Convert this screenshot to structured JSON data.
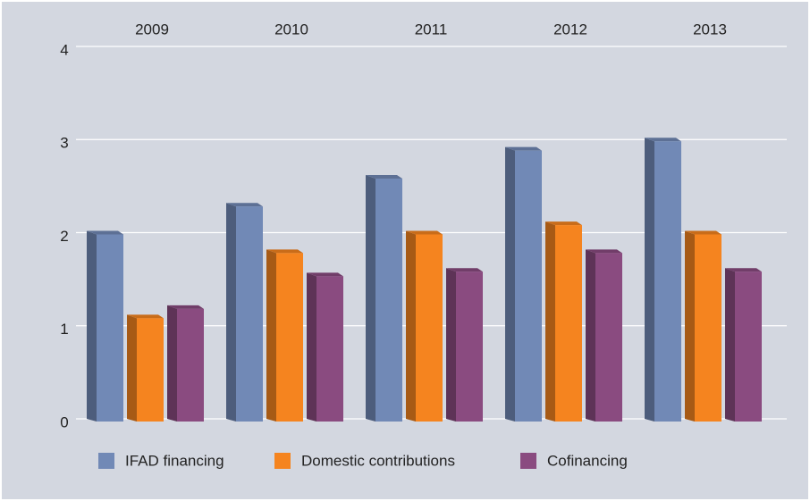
{
  "chart_data": {
    "type": "bar",
    "categories": [
      "2009",
      "2010",
      "2011",
      "2012",
      "2013"
    ],
    "series": [
      {
        "name": "IFAD financing",
        "color": "#7189b6",
        "values": [
          2.0,
          2.3,
          2.6,
          2.9,
          3.0
        ]
      },
      {
        "name": "Domestic contributions",
        "color": "#f5841f",
        "values": [
          1.1,
          1.8,
          2.0,
          2.1,
          2.0
        ]
      },
      {
        "name": "Cofinancing",
        "color": "#8a4b80",
        "values": [
          1.2,
          1.55,
          1.6,
          1.8,
          1.6
        ]
      }
    ],
    "ylim": [
      0,
      4
    ],
    "yticks": [
      0,
      1,
      2,
      3,
      4
    ],
    "grid": true,
    "legend": "bottom"
  }
}
